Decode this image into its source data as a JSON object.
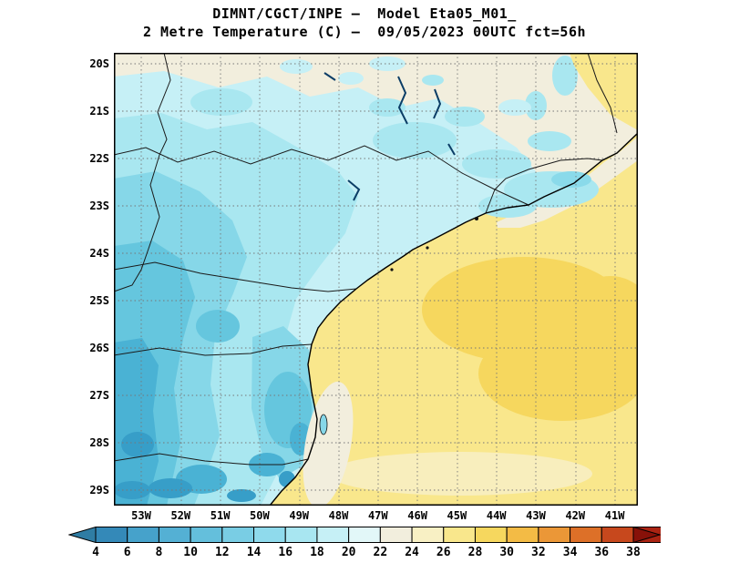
{
  "header": {
    "line1": "DIMNT/CGCT/INPE –  Model Eta05_M01_",
    "line2": "2 Metre Temperature (C) –  09/05/2023 00UTC fct=56h"
  },
  "map": {
    "lat_labels": [
      "20S",
      "21S",
      "22S",
      "23S",
      "24S",
      "25S",
      "26S",
      "27S",
      "28S",
      "29S"
    ],
    "lon_labels": [
      "53W",
      "52W",
      "51W",
      "50W",
      "49W",
      "48W",
      "47W",
      "46W",
      "45W",
      "44W",
      "43W",
      "42W",
      "41W"
    ]
  },
  "colorbar": {
    "tick_labels": [
      "4",
      "6",
      "8",
      "10",
      "12",
      "14",
      "16",
      "18",
      "20",
      "22",
      "24",
      "26",
      "28",
      "30",
      "32",
      "34",
      "36",
      "38"
    ],
    "arrow_left_color": "#2f7da4",
    "arrow_right_color": "#871109",
    "segment_colors": [
      "#3489b8",
      "#46a2cb",
      "#54b0d4",
      "#64bfdc",
      "#79cde4",
      "#8fdaec",
      "#a8e6f1",
      "#c6f0f6",
      "#e2f7f8",
      "#f2eedd",
      "#f8f0c4",
      "#f9e78c",
      "#f6d75e",
      "#f3bb45",
      "#eb9737",
      "#dd7028",
      "#c7481d",
      "#aa2413"
    ]
  },
  "chart_data": {
    "type": "heatmap",
    "title": "2 Metre Temperature (C)",
    "model": "Eta05_M01_",
    "valid": "09/05/2023 00UTC fct=56h",
    "lat_range": [
      "20S",
      "29S"
    ],
    "lon_range": [
      "53W",
      "41W"
    ],
    "scale_values": [
      4,
      6,
      8,
      10,
      12,
      14,
      16,
      18,
      20,
      22,
      24,
      26,
      28,
      30,
      32,
      34,
      36,
      38
    ],
    "units": "C",
    "legend_position": "bottom"
  }
}
